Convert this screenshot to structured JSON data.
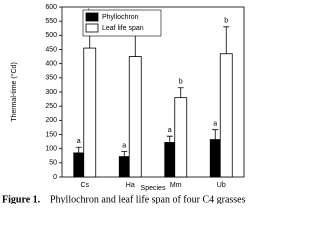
{
  "chart_data": {
    "type": "bar",
    "y_label": "Thermal-time (°Cd)",
    "x_label": "Species",
    "categories": [
      "Cs",
      "Ha",
      "Mm",
      "Ub"
    ],
    "series": [
      {
        "name": "Phyllochron",
        "color": "#000000",
        "values": [
          85,
          72,
          122,
          132
        ],
        "errors": [
          20,
          18,
          22,
          35
        ],
        "letters": [
          "a",
          "a",
          "a",
          "a"
        ]
      },
      {
        "name": "Leaf life span",
        "color": "#ffffff",
        "values": [
          455,
          425,
          280,
          435
        ],
        "errors": [
          105,
          105,
          35,
          95
        ],
        "letters": [
          "b",
          "b",
          "b",
          "b"
        ]
      }
    ],
    "ylim": [
      0,
      600
    ],
    "yticks": [
      0,
      50,
      100,
      150,
      200,
      250,
      300,
      350,
      400,
      450,
      500,
      550,
      600
    ],
    "legend": "top-left",
    "caption_label": "Figure 1.",
    "caption": "Phyllochron and leaf life span of four C4 grasses"
  }
}
